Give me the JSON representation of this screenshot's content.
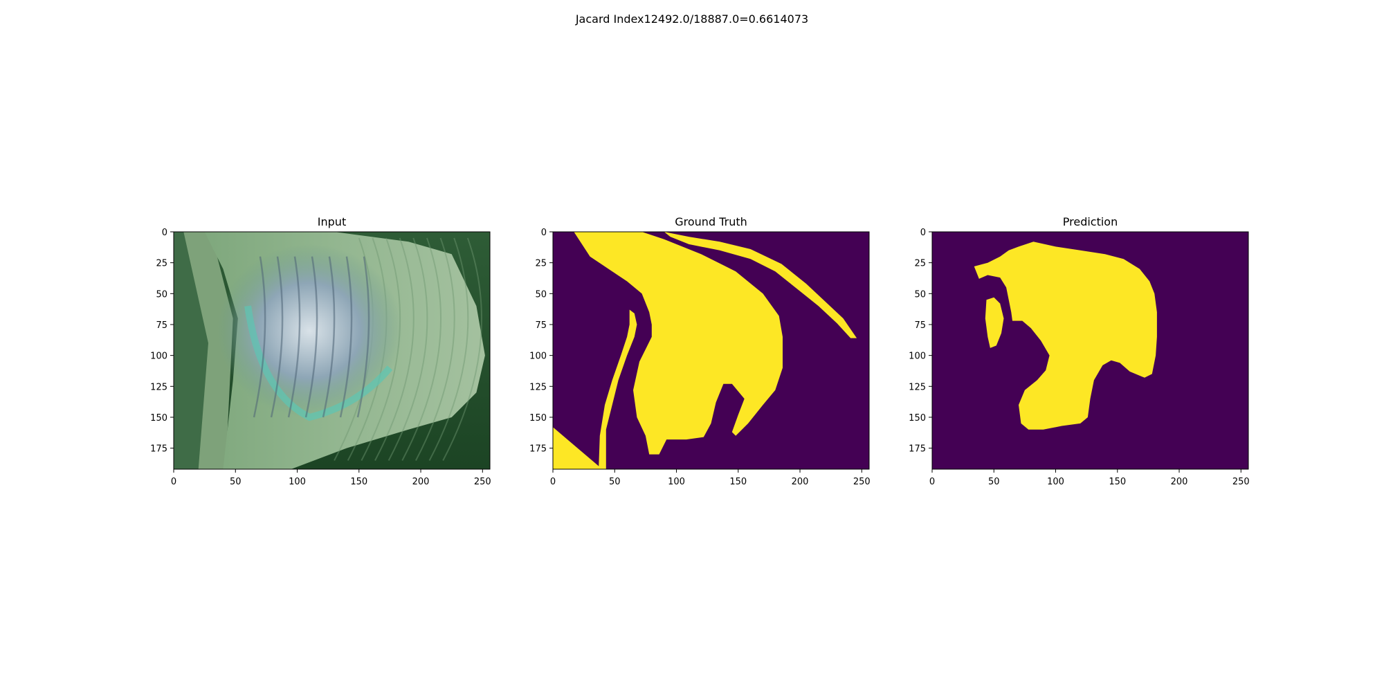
{
  "suptitle": "Jacard Index12492.0/18887.0=0.6614073",
  "colors": {
    "mask_background": "#440154",
    "mask_foreground": "#fde725",
    "leaf_dark": "#1e4a2a",
    "leaf_mid": "#6f9c6e",
    "leaf_light": "#a9c6a3",
    "lesion_blue": "#9fb3c4",
    "lesion_teal": "#5cc6b4"
  },
  "chart_data": [
    {
      "type": "heatmap",
      "title": "Input",
      "content": "rgb image of a green leaf with a blue-grey lesion",
      "xlim": [
        0,
        256
      ],
      "ylim": [
        192,
        0
      ],
      "xticks": [
        0,
        50,
        100,
        150,
        200,
        250
      ],
      "yticks": [
        0,
        25,
        50,
        75,
        100,
        125,
        150,
        175
      ],
      "grid": false
    },
    {
      "type": "heatmap",
      "title": "Ground Truth",
      "content": "binary mask",
      "xlim": [
        0,
        256
      ],
      "ylim": [
        192,
        0
      ],
      "xticks": [
        0,
        50,
        100,
        150,
        200,
        250
      ],
      "yticks": [
        0,
        25,
        50,
        75,
        100,
        125,
        150,
        175
      ],
      "grid": false,
      "regions": [
        {
          "name": "lesion",
          "points": [
            [
              17,
              0
            ],
            [
              72,
              0
            ],
            [
              90,
              6
            ],
            [
              120,
              18
            ],
            [
              148,
              32
            ],
            [
              170,
              50
            ],
            [
              183,
              68
            ],
            [
              186,
              85
            ],
            [
              186,
              110
            ],
            [
              180,
              128
            ],
            [
              170,
              140
            ],
            [
              158,
              155
            ],
            [
              148,
              165
            ],
            [
              145,
              162
            ],
            [
              150,
              148
            ],
            [
              155,
              135
            ],
            [
              145,
              123
            ],
            [
              138,
              123
            ],
            [
              132,
              138
            ],
            [
              128,
              155
            ],
            [
              122,
              166
            ],
            [
              108,
              168
            ],
            [
              92,
              168
            ],
            [
              86,
              180
            ],
            [
              78,
              180
            ],
            [
              75,
              165
            ],
            [
              68,
              150
            ],
            [
              65,
              128
            ],
            [
              70,
              105
            ],
            [
              75,
              95
            ],
            [
              80,
              85
            ],
            [
              80,
              75
            ],
            [
              78,
              65
            ],
            [
              72,
              50
            ],
            [
              60,
              40
            ],
            [
              45,
              30
            ],
            [
              30,
              20
            ]
          ]
        },
        {
          "name": "inner-strip",
          "points": [
            [
              62,
              63
            ],
            [
              66,
              66
            ],
            [
              68,
              75
            ],
            [
              66,
              85
            ],
            [
              60,
              100
            ],
            [
              53,
              120
            ],
            [
              48,
              140
            ],
            [
              43,
              160
            ],
            [
              43,
              192
            ],
            [
              37,
              192
            ],
            [
              38,
              165
            ],
            [
              42,
              140
            ],
            [
              48,
              120
            ],
            [
              55,
              100
            ],
            [
              60,
              85
            ],
            [
              62,
              75
            ]
          ]
        },
        {
          "name": "outer-strip",
          "points": [
            [
              90,
              0
            ],
            [
              110,
              4
            ],
            [
              135,
              8
            ],
            [
              160,
              14
            ],
            [
              185,
              26
            ],
            [
              205,
              42
            ],
            [
              220,
              56
            ],
            [
              235,
              70
            ],
            [
              246,
              86
            ],
            [
              241,
              86
            ],
            [
              230,
              74
            ],
            [
              215,
              60
            ],
            [
              200,
              48
            ],
            [
              180,
              32
            ],
            [
              160,
              22
            ],
            [
              135,
              15
            ],
            [
              110,
              10
            ],
            [
              95,
              4
            ]
          ]
        },
        {
          "name": "corner-wedge",
          "points": [
            [
              0,
              158
            ],
            [
              40,
              192
            ],
            [
              0,
              192
            ]
          ]
        }
      ]
    },
    {
      "type": "heatmap",
      "title": "Prediction",
      "content": "binary mask",
      "xlim": [
        0,
        256
      ],
      "ylim": [
        192,
        0
      ],
      "xticks": [
        0,
        50,
        100,
        150,
        200,
        250
      ],
      "yticks": [
        0,
        25,
        50,
        75,
        100,
        125,
        150,
        175
      ],
      "grid": false,
      "regions": [
        {
          "name": "lesion",
          "points": [
            [
              34,
              28
            ],
            [
              45,
              25
            ],
            [
              55,
              20
            ],
            [
              62,
              15
            ],
            [
              70,
              12
            ],
            [
              82,
              8
            ],
            [
              100,
              12
            ],
            [
              120,
              15
            ],
            [
              140,
              18
            ],
            [
              155,
              22
            ],
            [
              168,
              30
            ],
            [
              176,
              40
            ],
            [
              180,
              50
            ],
            [
              182,
              65
            ],
            [
              182,
              85
            ],
            [
              181,
              100
            ],
            [
              178,
              115
            ],
            [
              172,
              118
            ],
            [
              160,
              113
            ],
            [
              152,
              106
            ],
            [
              145,
              104
            ],
            [
              138,
              108
            ],
            [
              131,
              120
            ],
            [
              128,
              135
            ],
            [
              126,
              150
            ],
            [
              120,
              155
            ],
            [
              105,
              157
            ],
            [
              90,
              160
            ],
            [
              78,
              160
            ],
            [
              72,
              155
            ],
            [
              70,
              140
            ],
            [
              75,
              128
            ],
            [
              85,
              120
            ],
            [
              92,
              112
            ],
            [
              95,
              100
            ],
            [
              88,
              88
            ],
            [
              80,
              78
            ],
            [
              73,
              72
            ],
            [
              65,
              72
            ],
            [
              64,
              65
            ],
            [
              62,
              55
            ],
            [
              60,
              45
            ],
            [
              55,
              37
            ],
            [
              45,
              35
            ],
            [
              38,
              38
            ]
          ]
        },
        {
          "name": "small-blob",
          "points": [
            [
              44,
              55
            ],
            [
              50,
              53
            ],
            [
              55,
              58
            ],
            [
              58,
              70
            ],
            [
              56,
              82
            ],
            [
              52,
              92
            ],
            [
              47,
              94
            ],
            [
              45,
              85
            ],
            [
              43,
              70
            ]
          ]
        }
      ]
    }
  ]
}
